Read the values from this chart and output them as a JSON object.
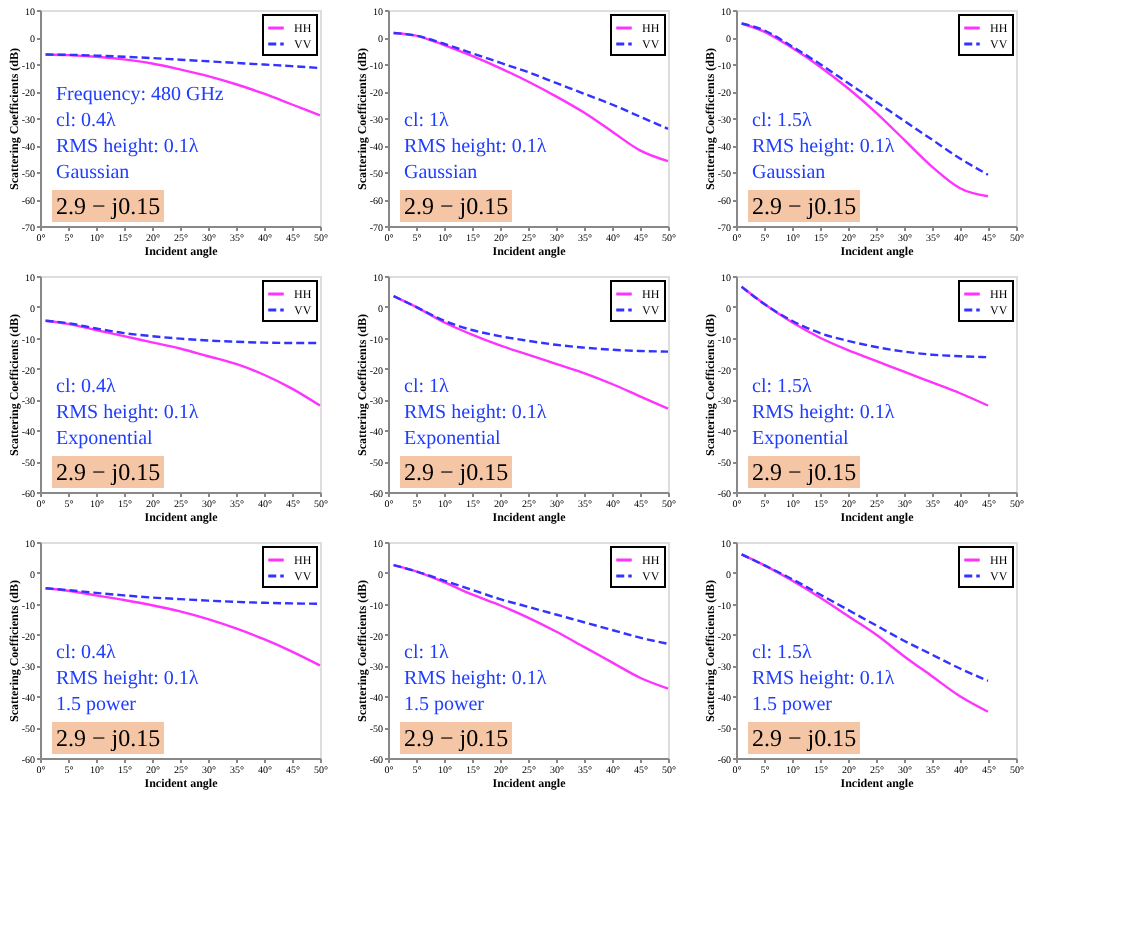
{
  "chart_data": [
    {
      "type": "line",
      "x": [
        1,
        5,
        10,
        15,
        20,
        25,
        30,
        35,
        40,
        45,
        50
      ],
      "xlabel": "Incident angle",
      "ylabel": "Scattering Coefficients (dB)",
      "xlim": [
        0,
        50
      ],
      "xticks": [
        {
          "value": 0,
          "label": "0°"
        },
        {
          "value": 5,
          "label": "5°"
        },
        {
          "value": 10,
          "label": "10°"
        },
        {
          "value": 15,
          "label": "15°"
        },
        {
          "value": 20,
          "label": "20°"
        },
        {
          "value": 25,
          "label": "25°"
        },
        {
          "value": 30,
          "label": "30°"
        },
        {
          "value": 35,
          "label": "35°"
        },
        {
          "value": 40,
          "label": "40°"
        },
        {
          "value": 45,
          "label": "45°"
        },
        {
          "value": 50,
          "label": "50°"
        }
      ],
      "ylim": [
        -70,
        10
      ],
      "yticks": [
        -70,
        -60,
        -50,
        -40,
        -30,
        -20,
        -10,
        0,
        10
      ],
      "legend": "top right",
      "annotations": [
        "Frequency: 480 GHz",
        "cl: 0.4λ",
        "RMS height: 0.1λ",
        "Gaussian",
        "2.9 − j0.15"
      ],
      "series": [
        {
          "name": "HH",
          "color": "#ff33ff",
          "line_style": "solid",
          "values": [
            -6.5,
            -6.7,
            -7.3,
            -8.3,
            -9.8,
            -12,
            -14.5,
            -17.5,
            -21,
            -25,
            -29
          ]
        },
        {
          "name": "VV",
          "color": "#3333ff",
          "line_style": "dashed",
          "values": [
            -6.5,
            -6.6,
            -6.9,
            -7.3,
            -7.8,
            -8.4,
            -9,
            -9.6,
            -10.2,
            -10.8,
            -11.5
          ]
        }
      ]
    },
    {
      "type": "line",
      "x": [
        1,
        5,
        10,
        15,
        20,
        25,
        30,
        35,
        40,
        45,
        50
      ],
      "xlabel": "Incident angle",
      "ylabel": "Scattering Coefficients (dB)",
      "xlim": [
        0,
        50
      ],
      "xticks": [
        {
          "value": 0,
          "label": "0°"
        },
        {
          "value": 5,
          "label": "5°"
        },
        {
          "value": 10,
          "label": "10°"
        },
        {
          "value": 15,
          "label": "15°"
        },
        {
          "value": 20,
          "label": "20°"
        },
        {
          "value": 25,
          "label": "25°"
        },
        {
          "value": 30,
          "label": "30°"
        },
        {
          "value": 35,
          "label": "35°"
        },
        {
          "value": 40,
          "label": "40°"
        },
        {
          "value": 45,
          "label": "45°"
        },
        {
          "value": 50,
          "label": "50°"
        }
      ],
      "ylim": [
        -70,
        10
      ],
      "yticks": [
        -70,
        -60,
        -50,
        -40,
        -30,
        -20,
        -10,
        0,
        10
      ],
      "legend": "top right",
      "annotations": [
        "cl: 1λ",
        "RMS height: 0.1λ",
        "Gaussian",
        "2.9 − j0.15"
      ],
      "series": [
        {
          "name": "HH",
          "color": "#ff33ff",
          "line_style": "solid",
          "values": [
            1.5,
            0.5,
            -3,
            -7,
            -11.5,
            -16.5,
            -22,
            -28,
            -35,
            -42,
            -46
          ]
        },
        {
          "name": "VV",
          "color": "#3333ff",
          "line_style": "dashed",
          "values": [
            1.5,
            0.5,
            -2.5,
            -6,
            -9.5,
            -13,
            -17,
            -21,
            -25,
            -29.5,
            -34
          ]
        }
      ]
    },
    {
      "type": "line",
      "x": [
        1,
        5,
        10,
        15,
        20,
        25,
        30,
        35,
        40,
        45
      ],
      "xlabel": "Incident angle",
      "ylabel": "Scattering Coefficients (dB)",
      "xlim": [
        0,
        50
      ],
      "xticks": [
        {
          "value": 0,
          "label": "0°"
        },
        {
          "value": 5,
          "label": "5°"
        },
        {
          "value": 10,
          "label": "10°"
        },
        {
          "value": 15,
          "label": "15°"
        },
        {
          "value": 20,
          "label": "20°"
        },
        {
          "value": 25,
          "label": "25°"
        },
        {
          "value": 30,
          "label": "30°"
        },
        {
          "value": 35,
          "label": "35°"
        },
        {
          "value": 40,
          "label": "40°"
        },
        {
          "value": 45,
          "label": "45°"
        },
        {
          "value": 50,
          "label": "50°"
        }
      ],
      "ylim": [
        -70,
        10
      ],
      "yticks": [
        -70,
        -60,
        -50,
        -40,
        -30,
        -20,
        -10,
        0,
        10
      ],
      "legend": "top right",
      "annotations": [
        "cl: 1.5λ",
        "RMS height: 0.1λ",
        "Gaussian",
        "2.9 − j0.15"
      ],
      "series": [
        {
          "name": "HH",
          "color": "#ff33ff",
          "line_style": "solid",
          "values": [
            5,
            2,
            -4,
            -11,
            -19,
            -28,
            -38,
            -48,
            -56,
            -59
          ]
        },
        {
          "name": "VV",
          "color": "#3333ff",
          "line_style": "dashed",
          "values": [
            5,
            2.5,
            -3.5,
            -10,
            -17,
            -24,
            -31,
            -38,
            -45,
            -51
          ]
        }
      ]
    },
    {
      "type": "line",
      "x": [
        1,
        5,
        10,
        15,
        20,
        25,
        30,
        35,
        40,
        45,
        50
      ],
      "xlabel": "Incident angle",
      "ylabel": "Scattering Coefficients (dB)",
      "xlim": [
        0,
        50
      ],
      "xticks": [
        {
          "value": 0,
          "label": "0°"
        },
        {
          "value": 5,
          "label": "5°"
        },
        {
          "value": 10,
          "label": "10°"
        },
        {
          "value": 15,
          "label": "15°"
        },
        {
          "value": 20,
          "label": "20°"
        },
        {
          "value": 25,
          "label": "25°"
        },
        {
          "value": 30,
          "label": "30°"
        },
        {
          "value": 35,
          "label": "35°"
        },
        {
          "value": 40,
          "label": "40°"
        },
        {
          "value": 45,
          "label": "45°"
        },
        {
          "value": 50,
          "label": "50°"
        }
      ],
      "ylim": [
        -60,
        10
      ],
      "yticks": [
        -60,
        -50,
        -40,
        -30,
        -20,
        -10,
        0,
        10
      ],
      "legend": "top right",
      "annotations": [
        "cl: 0.4λ",
        "RMS height: 0.1λ",
        "Exponential",
        "2.9 − j0.15"
      ],
      "series": [
        {
          "name": "HH",
          "color": "#ff33ff",
          "line_style": "solid",
          "values": [
            -4.5,
            -5.5,
            -7.5,
            -9.5,
            -11.5,
            -13.5,
            -16,
            -18.5,
            -22,
            -26.5,
            -32
          ]
        },
        {
          "name": "VV",
          "color": "#3333ff",
          "line_style": "dashed",
          "values": [
            -4.5,
            -5.3,
            -7,
            -8.5,
            -9.5,
            -10.3,
            -10.9,
            -11.3,
            -11.6,
            -11.7,
            -11.7
          ]
        }
      ]
    },
    {
      "type": "line",
      "x": [
        1,
        5,
        10,
        15,
        20,
        25,
        30,
        35,
        40,
        45,
        50
      ],
      "xlabel": "Incident angle",
      "ylabel": "Scattering Coefficients (dB)",
      "xlim": [
        0,
        50
      ],
      "xticks": [
        {
          "value": 0,
          "label": "0°"
        },
        {
          "value": 5,
          "label": "5°"
        },
        {
          "value": 10,
          "label": "10°"
        },
        {
          "value": 15,
          "label": "15°"
        },
        {
          "value": 20,
          "label": "20°"
        },
        {
          "value": 25,
          "label": "25°"
        },
        {
          "value": 30,
          "label": "30°"
        },
        {
          "value": 35,
          "label": "35°"
        },
        {
          "value": 40,
          "label": "40°"
        },
        {
          "value": 45,
          "label": "45°"
        },
        {
          "value": 50,
          "label": "50°"
        }
      ],
      "ylim": [
        -60,
        10
      ],
      "yticks": [
        -60,
        -50,
        -40,
        -30,
        -20,
        -10,
        0,
        10
      ],
      "legend": "top right",
      "annotations": [
        "cl: 1λ",
        "RMS height: 0.1λ",
        "Exponential",
        "2.9 − j0.15"
      ],
      "series": [
        {
          "name": "HH",
          "color": "#ff33ff",
          "line_style": "solid",
          "values": [
            3.5,
            0,
            -5,
            -9,
            -12.5,
            -15.5,
            -18.5,
            -21.5,
            -25,
            -29,
            -33
          ]
        },
        {
          "name": "VV",
          "color": "#3333ff",
          "line_style": "dashed",
          "values": [
            3.5,
            0,
            -4.5,
            -7.5,
            -9.5,
            -11,
            -12.3,
            -13.2,
            -13.9,
            -14.3,
            -14.5
          ]
        }
      ]
    },
    {
      "type": "line",
      "x": [
        1,
        5,
        10,
        15,
        20,
        25,
        30,
        35,
        40,
        45
      ],
      "xlabel": "Incident angle",
      "ylabel": "Scattering Coefficients (dB)",
      "xlim": [
        0,
        50
      ],
      "xticks": [
        {
          "value": 0,
          "label": "0°"
        },
        {
          "value": 5,
          "label": "5°"
        },
        {
          "value": 10,
          "label": "10°"
        },
        {
          "value": 15,
          "label": "15°"
        },
        {
          "value": 20,
          "label": "20°"
        },
        {
          "value": 25,
          "label": "25°"
        },
        {
          "value": 30,
          "label": "30°"
        },
        {
          "value": 35,
          "label": "35°"
        },
        {
          "value": 40,
          "label": "40°"
        },
        {
          "value": 45,
          "label": "45°"
        },
        {
          "value": 50,
          "label": "50°"
        }
      ],
      "ylim": [
        -60,
        10
      ],
      "yticks": [
        -60,
        -50,
        -40,
        -30,
        -20,
        -10,
        0,
        10
      ],
      "legend": "top right",
      "annotations": [
        "cl: 1.5λ",
        "RMS height: 0.1λ",
        "Exponential",
        "2.9 − j0.15"
      ],
      "series": [
        {
          "name": "HH",
          "color": "#ff33ff",
          "line_style": "solid",
          "values": [
            6.5,
            1,
            -5,
            -10,
            -14,
            -17.5,
            -21,
            -24.5,
            -28,
            -32
          ]
        },
        {
          "name": "VV",
          "color": "#3333ff",
          "line_style": "dashed",
          "values": [
            6.5,
            1,
            -4.5,
            -8.5,
            -11,
            -13,
            -14.5,
            -15.5,
            -16,
            -16.3
          ]
        }
      ]
    },
    {
      "type": "line",
      "x": [
        1,
        5,
        10,
        15,
        20,
        25,
        30,
        35,
        40,
        45,
        50
      ],
      "xlabel": "Incident angle",
      "ylabel": "Scattering Coefficients (dB)",
      "xlim": [
        0,
        50
      ],
      "xticks": [
        {
          "value": 0,
          "label": "0°"
        },
        {
          "value": 5,
          "label": "5°"
        },
        {
          "value": 10,
          "label": "10°"
        },
        {
          "value": 15,
          "label": "15°"
        },
        {
          "value": 20,
          "label": "20°"
        },
        {
          "value": 25,
          "label": "25°"
        },
        {
          "value": 30,
          "label": "30°"
        },
        {
          "value": 35,
          "label": "35°"
        },
        {
          "value": 40,
          "label": "40°"
        },
        {
          "value": 45,
          "label": "45°"
        },
        {
          "value": 50,
          "label": "50°"
        }
      ],
      "ylim": [
        -60,
        10
      ],
      "yticks": [
        -60,
        -50,
        -40,
        -30,
        -20,
        -10,
        0,
        10
      ],
      "legend": "top right",
      "annotations": [
        "cl: 0.4λ",
        "RMS height: 0.1λ",
        "1.5 power",
        "2.9 − j0.15"
      ],
      "series": [
        {
          "name": "HH",
          "color": "#ff33ff",
          "line_style": "solid",
          "values": [
            -5,
            -5.8,
            -7.3,
            -8.8,
            -10.5,
            -12.5,
            -15,
            -18,
            -21.5,
            -25.5,
            -30
          ]
        },
        {
          "name": "VV",
          "color": "#3333ff",
          "line_style": "dashed",
          "values": [
            -5,
            -5.6,
            -6.5,
            -7.3,
            -8,
            -8.5,
            -9,
            -9.4,
            -9.7,
            -9.9,
            -10
          ]
        }
      ]
    },
    {
      "type": "line",
      "x": [
        1,
        5,
        10,
        15,
        20,
        25,
        30,
        35,
        40,
        45,
        50
      ],
      "xlabel": "Incident angle",
      "ylabel": "Scattering Coefficients (dB)",
      "xlim": [
        0,
        50
      ],
      "xticks": [
        {
          "value": 0,
          "label": "0°"
        },
        {
          "value": 5,
          "label": "5°"
        },
        {
          "value": 10,
          "label": "10°"
        },
        {
          "value": 15,
          "label": "15°"
        },
        {
          "value": 20,
          "label": "20°"
        },
        {
          "value": 25,
          "label": "25°"
        },
        {
          "value": 30,
          "label": "30°"
        },
        {
          "value": 35,
          "label": "35°"
        },
        {
          "value": 40,
          "label": "40°"
        },
        {
          "value": 45,
          "label": "45°"
        },
        {
          "value": 50,
          "label": "50°"
        }
      ],
      "ylim": [
        -60,
        10
      ],
      "yticks": [
        -60,
        -50,
        -40,
        -30,
        -20,
        -10,
        0,
        10
      ],
      "legend": "top right",
      "annotations": [
        "cl: 1λ",
        "RMS height: 0.1λ",
        "1.5 power",
        "2.9 − j0.15"
      ],
      "series": [
        {
          "name": "HH",
          "color": "#ff33ff",
          "line_style": "solid",
          "values": [
            2.5,
            0.5,
            -3,
            -7,
            -10.5,
            -14.5,
            -19,
            -24,
            -29,
            -34,
            -37.5
          ]
        },
        {
          "name": "VV",
          "color": "#3333ff",
          "line_style": "dashed",
          "values": [
            2.5,
            0.5,
            -2.5,
            -5.5,
            -8.5,
            -11,
            -13.5,
            -16,
            -18.5,
            -21,
            -23
          ]
        }
      ]
    },
    {
      "type": "line",
      "x": [
        1,
        5,
        10,
        15,
        20,
        25,
        30,
        35,
        40,
        45
      ],
      "xlabel": "Incident angle",
      "ylabel": "Scattering Coefficients (dB)",
      "xlim": [
        0,
        50
      ],
      "xticks": [
        {
          "value": 0,
          "label": "0°"
        },
        {
          "value": 5,
          "label": "5°"
        },
        {
          "value": 10,
          "label": "10°"
        },
        {
          "value": 15,
          "label": "15°"
        },
        {
          "value": 20,
          "label": "20°"
        },
        {
          "value": 25,
          "label": "25°"
        },
        {
          "value": 30,
          "label": "30°"
        },
        {
          "value": 35,
          "label": "35°"
        },
        {
          "value": 40,
          "label": "40°"
        },
        {
          "value": 45,
          "label": "45°"
        },
        {
          "value": 50,
          "label": "50°"
        }
      ],
      "ylim": [
        -60,
        10
      ],
      "yticks": [
        -60,
        -50,
        -40,
        -30,
        -20,
        -10,
        0,
        10
      ],
      "legend": "top right",
      "annotations": [
        "cl: 1.5λ",
        "RMS height: 0.1λ",
        "1.5 power",
        "2.9 − j0.15"
      ],
      "series": [
        {
          "name": "HH",
          "color": "#ff33ff",
          "line_style": "solid",
          "values": [
            6,
            2.5,
            -2.5,
            -8,
            -14,
            -20,
            -27,
            -33.5,
            -40,
            -45
          ]
        },
        {
          "name": "VV",
          "color": "#3333ff",
          "line_style": "dashed",
          "values": [
            6,
            2.5,
            -2,
            -7,
            -12,
            -17,
            -22,
            -26.5,
            -31,
            -35
          ]
        }
      ]
    }
  ]
}
